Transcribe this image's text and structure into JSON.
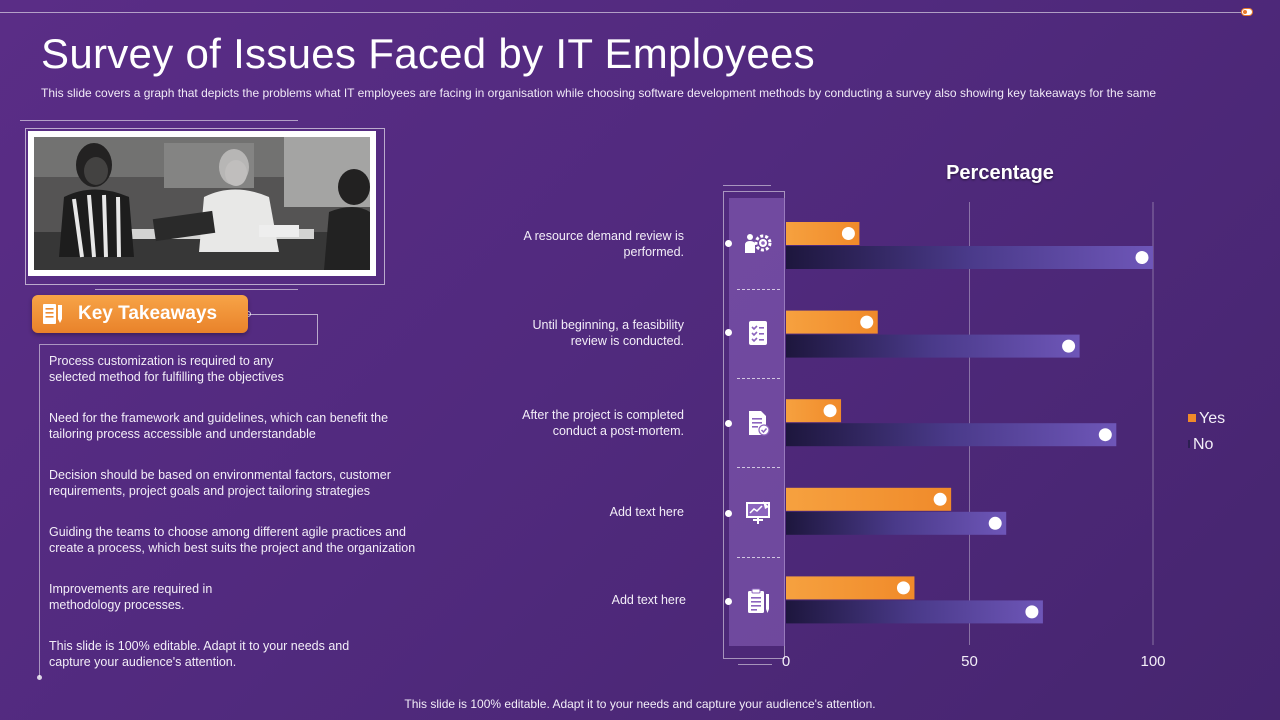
{
  "slide": {
    "title": "Survey of Issues Faced by IT Employees",
    "subtitle": "This slide covers a graph that depicts the problems what IT employees are facing in organisation while choosing software development methods by conducting a survey  also showing key takeaways for the same",
    "footer": "This slide is 100% editable. Adapt it to your needs and capture your audience's attention."
  },
  "key_takeaways": {
    "label": "Key Takeaways",
    "items": [
      "Process customization is required to any selected method for fulfilling the objectives",
      "Need for the framework  and guidelines, which can benefit the tailoring process accessible and understandable",
      "Decision should be based on environmental  factors, customer requirements,  project goals and project tailoring strategies",
      "Guiding the teams to choose among different  agile practices and create a process, which best suits the project and the organization",
      "Improvements  are required in methodology  processes.",
      "This slide is 100% editable. Adapt it to your needs and capture your audience's attention."
    ]
  },
  "questions": [
    {
      "label": "A resource  demand review is performed.",
      "icon": "settings-users-icon"
    },
    {
      "label": "Until beginning,  a feasibility review  is conducted.",
      "icon": "checklist-icon"
    },
    {
      "label": "After the project is completed conduct a post-mortem.",
      "icon": "document-check-icon"
    },
    {
      "label": "Add text here",
      "icon": "presentation-board-icon"
    },
    {
      "label": "Add text here",
      "icon": "clipboard-pen-icon"
    }
  ],
  "colors": {
    "yes": "#f08a2a",
    "no": "#6e56b8",
    "background": "#512a7e"
  },
  "chart_data": {
    "type": "bar",
    "orientation": "horizontal",
    "title": "Percentage",
    "categories": [
      "A resource  demand review is performed.",
      "Until beginning,  a feasibility review  is conducted.",
      "After the project is completed conduct a post-mortem.",
      "Add text here",
      "Add text here"
    ],
    "series": [
      {
        "name": "Yes",
        "values": [
          20,
          25,
          15,
          45,
          35
        ]
      },
      {
        "name": "No",
        "values": [
          100,
          80,
          90,
          60,
          70
        ]
      }
    ],
    "xlim": [
      0,
      100
    ],
    "x_ticks": [
      "0",
      "50",
      "100"
    ],
    "grid": true,
    "legend_position": "right"
  }
}
